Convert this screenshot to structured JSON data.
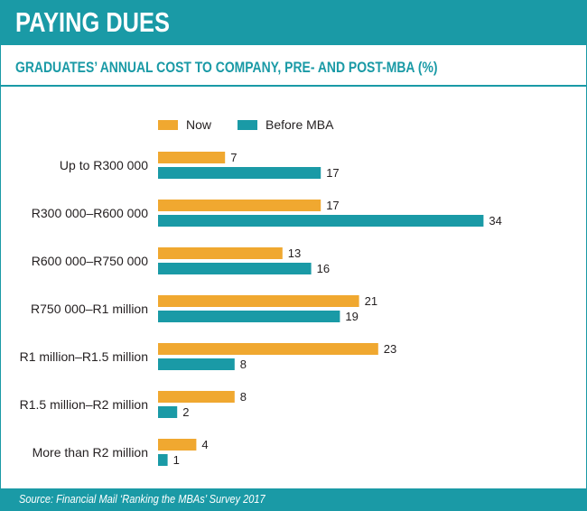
{
  "header": {
    "title": "PAYING DUES"
  },
  "subtitle": "GRADUATES’ ANNUAL COST TO COMPANY, PRE- AND POST-MBA (%)",
  "footer": {
    "source": "Source: Financial Mail ‘Ranking the MBAs’ Survey 2017"
  },
  "colors": {
    "accent": "#1a9aa6",
    "now": "#f0a830",
    "before": "#1a9aa6"
  },
  "chart_data": {
    "type": "bar",
    "orientation": "horizontal",
    "categories": [
      "Up to R300 000",
      "R300 000–R600 000",
      "R600 000–R750 000",
      "R750 000–R1 million",
      "R1 million–R1.5 million",
      "R1.5 million–R2 million",
      "More than R2 million"
    ],
    "series": [
      {
        "name": "Now",
        "color": "#f0a830",
        "values": [
          7,
          17,
          13,
          21,
          23,
          8,
          4
        ]
      },
      {
        "name": "Before MBA",
        "color": "#1a9aa6",
        "values": [
          17,
          34,
          16,
          19,
          8,
          2,
          1
        ]
      }
    ],
    "legend": "top"
  }
}
